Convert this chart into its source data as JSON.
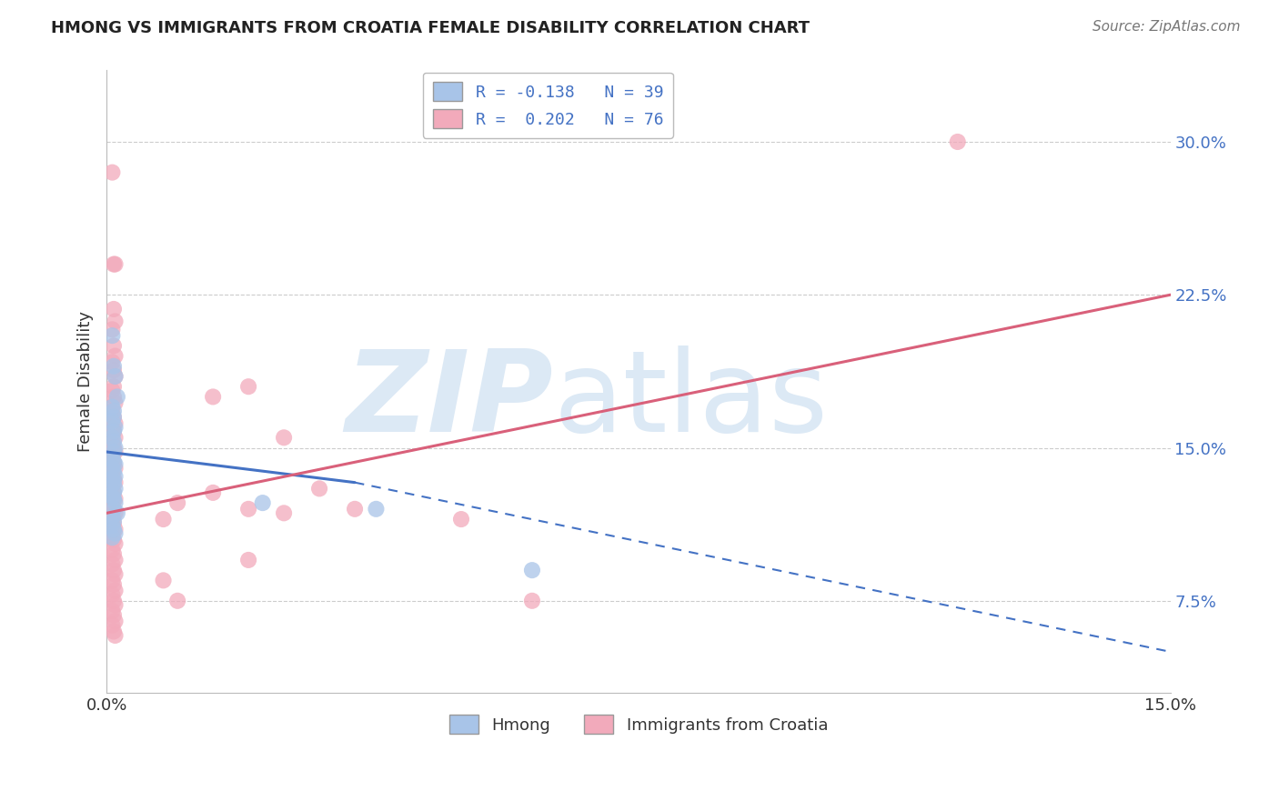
{
  "title": "HMONG VS IMMIGRANTS FROM CROATIA FEMALE DISABILITY CORRELATION CHART",
  "source": "Source: ZipAtlas.com",
  "ylabel": "Female Disability",
  "y_ticks": [
    0.075,
    0.15,
    0.225,
    0.3
  ],
  "y_tick_labels": [
    "7.5%",
    "15.0%",
    "22.5%",
    "30.0%"
  ],
  "xlim": [
    0.0,
    0.15
  ],
  "ylim": [
    0.03,
    0.335
  ],
  "legend_r1": "R = -0.138",
  "legend_n1": "N = 39",
  "legend_r2": "R = 0.202",
  "legend_n2": "N = 76",
  "color_blue": "#A8C4E8",
  "color_pink": "#F2AABB",
  "line_blue": "#4472C4",
  "line_pink": "#D9607A",
  "watermark_zip": "ZIP",
  "watermark_atlas": "atlas",
  "watermark_color": "#DCE9F5",
  "hmong_x": [
    0.0008,
    0.001,
    0.0012,
    0.0015,
    0.0008,
    0.001,
    0.001,
    0.0008,
    0.0012,
    0.001,
    0.0008,
    0.001,
    0.0012,
    0.001,
    0.0008,
    0.001,
    0.0012,
    0.0008,
    0.001,
    0.0012,
    0.0008,
    0.001,
    0.0008,
    0.0012,
    0.001,
    0.0008,
    0.001,
    0.0012,
    0.001,
    0.0015,
    0.0008,
    0.001,
    0.0008,
    0.001,
    0.0012,
    0.0008,
    0.022,
    0.038,
    0.06
  ],
  "hmong_y": [
    0.205,
    0.19,
    0.185,
    0.175,
    0.17,
    0.168,
    0.165,
    0.163,
    0.16,
    0.158,
    0.155,
    0.153,
    0.15,
    0.148,
    0.145,
    0.143,
    0.142,
    0.14,
    0.138,
    0.136,
    0.135,
    0.133,
    0.132,
    0.13,
    0.128,
    0.126,
    0.125,
    0.123,
    0.12,
    0.118,
    0.116,
    0.114,
    0.112,
    0.11,
    0.108,
    0.106,
    0.123,
    0.12,
    0.09
  ],
  "croatia_x": [
    0.0008,
    0.001,
    0.0012,
    0.001,
    0.0012,
    0.0008,
    0.001,
    0.0012,
    0.0008,
    0.001,
    0.0012,
    0.001,
    0.0008,
    0.001,
    0.0012,
    0.0008,
    0.001,
    0.0012,
    0.0008,
    0.001,
    0.0012,
    0.0008,
    0.001,
    0.0012,
    0.0008,
    0.001,
    0.0012,
    0.0008,
    0.001,
    0.0012,
    0.0008,
    0.001,
    0.0012,
    0.0008,
    0.001,
    0.0012,
    0.0008,
    0.001,
    0.0012,
    0.0008,
    0.001,
    0.0012,
    0.0008,
    0.001,
    0.0012,
    0.0008,
    0.001,
    0.0012,
    0.0008,
    0.001,
    0.0012,
    0.0008,
    0.001,
    0.0012,
    0.0008,
    0.001,
    0.0012,
    0.0008,
    0.001,
    0.0012,
    0.015,
    0.02,
    0.025,
    0.03,
    0.035,
    0.05,
    0.025,
    0.02,
    0.015,
    0.01,
    0.008,
    0.02,
    0.008,
    0.01,
    0.12,
    0.06
  ],
  "croatia_y": [
    0.285,
    0.24,
    0.24,
    0.218,
    0.212,
    0.208,
    0.2,
    0.195,
    0.192,
    0.188,
    0.185,
    0.18,
    0.178,
    0.175,
    0.172,
    0.168,
    0.165,
    0.162,
    0.16,
    0.158,
    0.155,
    0.152,
    0.15,
    0.148,
    0.145,
    0.143,
    0.14,
    0.138,
    0.135,
    0.133,
    0.13,
    0.128,
    0.125,
    0.123,
    0.12,
    0.118,
    0.115,
    0.113,
    0.11,
    0.108,
    0.105,
    0.103,
    0.1,
    0.098,
    0.095,
    0.093,
    0.09,
    0.088,
    0.085,
    0.083,
    0.08,
    0.078,
    0.075,
    0.073,
    0.07,
    0.068,
    0.065,
    0.063,
    0.06,
    0.058,
    0.175,
    0.18,
    0.155,
    0.13,
    0.12,
    0.115,
    0.118,
    0.12,
    0.128,
    0.123,
    0.115,
    0.095,
    0.085,
    0.075,
    0.3,
    0.075
  ],
  "hmong_line_x0": 0.0,
  "hmong_line_x_solid_end": 0.035,
  "hmong_line_x1": 0.15,
  "hmong_line_y0": 0.148,
  "hmong_line_y_solid_end": 0.133,
  "hmong_line_y1": 0.05,
  "croatia_line_x0": 0.0,
  "croatia_line_x1": 0.15,
  "croatia_line_y0": 0.118,
  "croatia_line_y1": 0.225
}
